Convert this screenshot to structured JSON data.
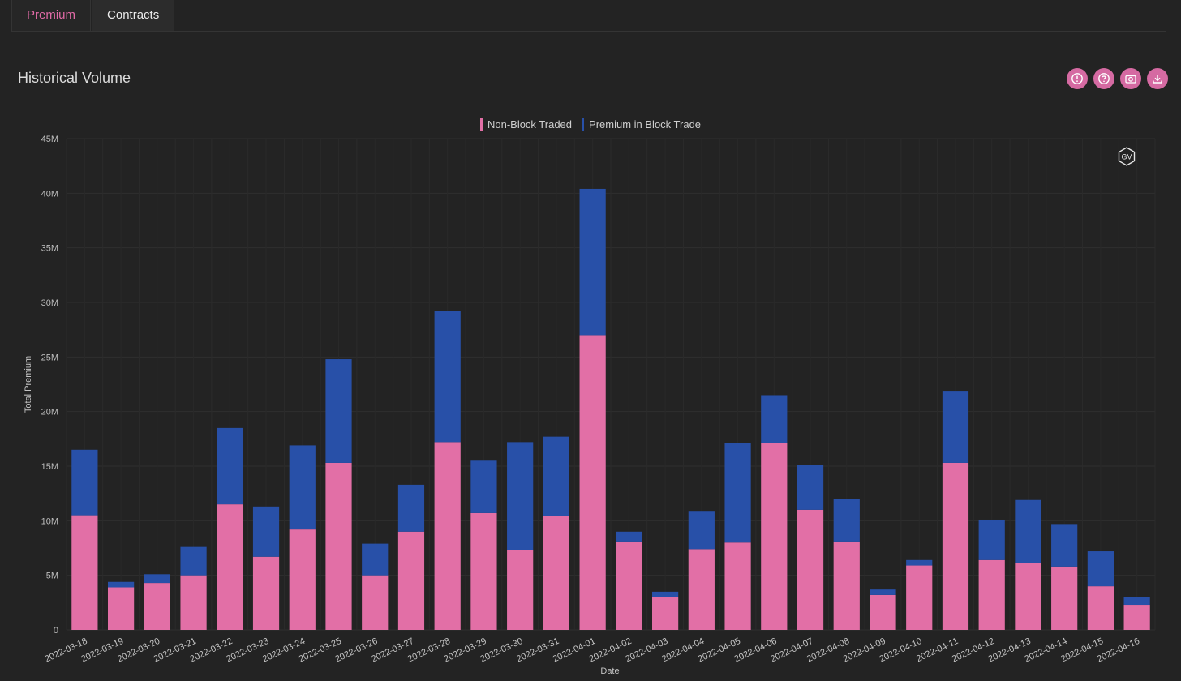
{
  "tabs": [
    {
      "label": "Premium",
      "active": true
    },
    {
      "label": "Contracts",
      "active": false
    }
  ],
  "panel": {
    "title": "Historical Volume"
  },
  "toolbar": {
    "icons": [
      "alert-icon",
      "help-icon",
      "camera-icon",
      "download-icon"
    ],
    "accent": "#d56aa2"
  },
  "watermark": {
    "text": "GV"
  },
  "chart_data": {
    "type": "bar",
    "stacked": true,
    "title": "",
    "xlabel": "Date",
    "ylabel": "Total Premium",
    "ylim": [
      0,
      45000000
    ],
    "yticks": [
      "0",
      "5M",
      "10M",
      "15M",
      "20M",
      "25M",
      "30M",
      "35M",
      "40M",
      "45M"
    ],
    "grid": true,
    "legend_position": "top-center",
    "categories": [
      "2022-03-18",
      "2022-03-19",
      "2022-03-20",
      "2022-03-21",
      "2022-03-22",
      "2022-03-23",
      "2022-03-24",
      "2022-03-25",
      "2022-03-26",
      "2022-03-27",
      "2022-03-28",
      "2022-03-29",
      "2022-03-30",
      "2022-03-31",
      "2022-04-01",
      "2022-04-02",
      "2022-04-03",
      "2022-04-04",
      "2022-04-05",
      "2022-04-06",
      "2022-04-07",
      "2022-04-08",
      "2022-04-09",
      "2022-04-10",
      "2022-04-11",
      "2022-04-12",
      "2022-04-13",
      "2022-04-14",
      "2022-04-15",
      "2022-04-16"
    ],
    "series": [
      {
        "name": "Non-Block Traded",
        "color": "#e26fa6",
        "values": [
          10.5,
          3.9,
          4.3,
          5.0,
          11.5,
          6.7,
          9.2,
          15.3,
          5.0,
          9.0,
          17.2,
          10.7,
          7.3,
          10.4,
          27.0,
          8.1,
          3.0,
          7.4,
          8.0,
          17.1,
          11.0,
          8.1,
          3.2,
          5.9,
          15.3,
          6.4,
          6.1,
          5.8,
          4.0,
          2.3
        ]
      },
      {
        "name": "Premium in Block Trade",
        "color": "#2850a8",
        "values": [
          6.0,
          0.5,
          0.8,
          2.6,
          7.0,
          4.6,
          7.7,
          9.5,
          2.9,
          4.3,
          12.0,
          4.8,
          9.9,
          7.3,
          13.4,
          0.9,
          0.5,
          3.5,
          9.1,
          4.4,
          4.1,
          3.9,
          0.5,
          0.5,
          6.6,
          3.7,
          5.8,
          3.9,
          3.2,
          0.7
        ]
      }
    ],
    "value_unit": "M"
  }
}
